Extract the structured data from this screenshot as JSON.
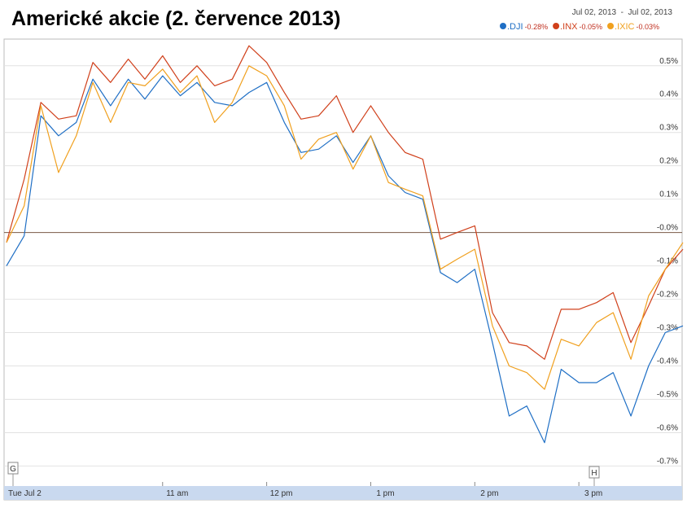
{
  "chart_data": {
    "type": "line",
    "title": "Americké akcie (2. července 2013)",
    "date_range": "Jul 02, 2013  -  Jul 02, 2013",
    "x": [
      9.5,
      9.67,
      9.83,
      10,
      10.17,
      10.33,
      10.5,
      10.67,
      10.83,
      11,
      11.17,
      11.33,
      11.5,
      11.67,
      11.83,
      12,
      12.17,
      12.33,
      12.5,
      12.67,
      12.83,
      13,
      13.17,
      13.33,
      13.5,
      13.67,
      13.83,
      14,
      14.17,
      14.33,
      14.5,
      14.67,
      14.83,
      15,
      15.17,
      15.33,
      15.5,
      15.67,
      15.83,
      16
    ],
    "series": [
      {
        "name": ".DJI",
        "change": "-0.28%",
        "color": "#1f6fc5",
        "values": [
          -0.1,
          -0.01,
          0.35,
          0.29,
          0.33,
          0.46,
          0.38,
          0.46,
          0.4,
          0.47,
          0.41,
          0.45,
          0.39,
          0.38,
          0.42,
          0.45,
          0.33,
          0.24,
          0.25,
          0.29,
          0.21,
          0.29,
          0.17,
          0.12,
          0.1,
          -0.12,
          -0.15,
          -0.11,
          -0.33,
          -0.55,
          -0.52,
          -0.63,
          -0.41,
          -0.45,
          -0.45,
          -0.42,
          -0.55,
          -0.4,
          -0.3,
          -0.28
        ]
      },
      {
        "name": ".INX",
        "change": "-0.05%",
        "color": "#d0401b",
        "values": [
          -0.03,
          0.16,
          0.39,
          0.34,
          0.35,
          0.51,
          0.45,
          0.52,
          0.46,
          0.53,
          0.45,
          0.5,
          0.44,
          0.46,
          0.56,
          0.51,
          0.42,
          0.34,
          0.35,
          0.41,
          0.3,
          0.38,
          0.3,
          0.24,
          0.22,
          -0.02,
          0.0,
          0.02,
          -0.24,
          -0.33,
          -0.34,
          -0.38,
          -0.23,
          -0.23,
          -0.21,
          -0.18,
          -0.33,
          -0.22,
          -0.11,
          -0.05
        ]
      },
      {
        "name": ".IXIC",
        "change": "-0.03%",
        "color": "#f0a01e",
        "values": [
          -0.03,
          0.08,
          0.38,
          0.18,
          0.29,
          0.45,
          0.33,
          0.45,
          0.44,
          0.49,
          0.42,
          0.47,
          0.33,
          0.39,
          0.5,
          0.47,
          0.38,
          0.22,
          0.28,
          0.3,
          0.19,
          0.29,
          0.15,
          0.13,
          0.11,
          -0.11,
          -0.08,
          -0.05,
          -0.28,
          -0.4,
          -0.42,
          -0.47,
          -0.32,
          -0.34,
          -0.27,
          -0.24,
          -0.38,
          -0.19,
          -0.11,
          -0.03
        ]
      }
    ],
    "xlim": [
      9.5,
      16
    ],
    "xticks": [
      {
        "value": 9.5,
        "label": "Tue Jul 2"
      },
      {
        "value": 11,
        "label": "11 am"
      },
      {
        "value": 12,
        "label": "12 pm"
      },
      {
        "value": 13,
        "label": "1 pm"
      },
      {
        "value": 14,
        "label": "2 pm"
      },
      {
        "value": 15,
        "label": "3 pm"
      }
    ],
    "ylim": [
      -0.76,
      0.58
    ],
    "yticks": [
      {
        "value": 0.5,
        "label": "0.5%"
      },
      {
        "value": 0.4,
        "label": "0.4%"
      },
      {
        "value": 0.3,
        "label": "0.3%"
      },
      {
        "value": 0.2,
        "label": "0.2%"
      },
      {
        "value": 0.1,
        "label": "0.1%"
      },
      {
        "value": 0,
        "label": "-0.0%"
      },
      {
        "value": -0.1,
        "label": "-0.1%"
      },
      {
        "value": -0.2,
        "label": "-0.2%"
      },
      {
        "value": -0.3,
        "label": "-0.3%"
      },
      {
        "value": -0.4,
        "label": "-0.4%"
      },
      {
        "value": -0.5,
        "label": "-0.5%"
      },
      {
        "value": -0.6,
        "label": "-0.6%"
      },
      {
        "value": -0.7,
        "label": "-0.7%"
      }
    ],
    "grid": true,
    "annotations": [
      "G",
      "H"
    ]
  }
}
